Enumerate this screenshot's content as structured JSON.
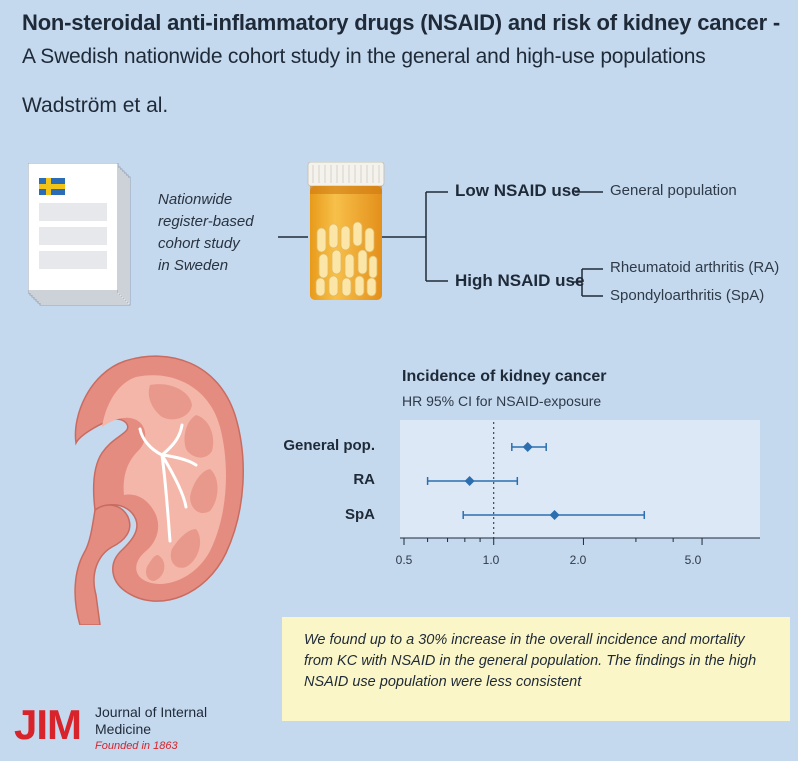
{
  "header": {
    "title": "Non-steroidal anti-inflammatory drugs (NSAID) and risk of kidney cancer -",
    "subtitle": "A Swedish nationwide cohort study in the general and high-use populations",
    "authors": "Wadström et al."
  },
  "study": {
    "label_lines": [
      "Nationwide",
      "register-based",
      "cohort study",
      "in Sweden"
    ],
    "flag_icon": "sweden-flag-icon",
    "document_icon": "document-stack-icon",
    "bottle_icon": "pill-bottle-icon"
  },
  "branches": {
    "low": {
      "label": "Low NSAID use",
      "groups": [
        "General population"
      ]
    },
    "high": {
      "label": "High NSAID use",
      "groups": [
        "Rheumatoid arthritis (RA)",
        "Spondyloarthritis (SpA)"
      ]
    }
  },
  "forest": {
    "title": "Incidence of kidney cancer",
    "subtitle": "HR 95% CI for NSAID-exposure",
    "rows": [
      {
        "label": "General pop.",
        "hr": 1.3,
        "ci": [
          1.15,
          1.5
        ]
      },
      {
        "label": "RA",
        "hr": 0.83,
        "ci": [
          0.6,
          1.2
        ]
      },
      {
        "label": "SpA",
        "hr": 1.6,
        "ci": [
          0.79,
          3.2
        ]
      }
    ],
    "tick_labels": [
      "0.5",
      "1.0",
      "2.0",
      "5.0"
    ]
  },
  "chart_data": {
    "type": "scatter",
    "title": "Incidence of kidney cancer",
    "subtitle": "HR 95% CI for NSAID-exposure",
    "categories": [
      "General pop.",
      "RA",
      "SpA"
    ],
    "values": [
      1.3,
      0.83,
      1.6
    ],
    "ci_low": [
      1.15,
      0.6,
      0.79
    ],
    "ci_high": [
      1.5,
      1.2,
      3.2
    ],
    "xscale": "log",
    "xlim": [
      0.5,
      6.5
    ],
    "xticks": [
      0.5,
      1.0,
      2.0,
      5.0
    ],
    "minor_ticks": [
      0.6,
      0.7,
      0.8,
      0.9,
      3.0,
      4.0
    ],
    "reference_line": 1.0,
    "marker_color": "#2c6fb0"
  },
  "finding": "We found up to a 30% increase in the overall incidence and mortality from KC with NSAID in the general population. The findings in the high NSAID use population were less consistent",
  "journal": {
    "logo": "JIM",
    "name": "Journal of Internal Medicine",
    "founded": "Founded in 1863"
  },
  "colors": {
    "background": "#c4d8ee",
    "accent": "#2c6fb0",
    "panel": "#dde8f6",
    "highlight": "#fbf6c8",
    "brand": "#d8232a"
  }
}
